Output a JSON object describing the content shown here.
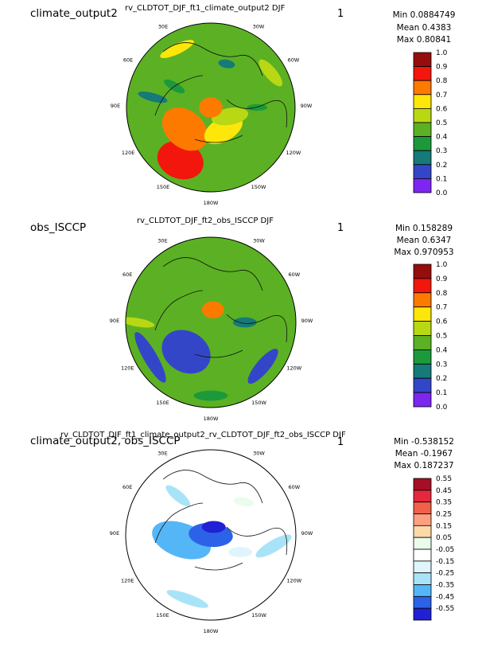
{
  "chart_data": [
    {
      "type": "heatmap",
      "title": "climate_output2",
      "subtitle": "rv_CLDTOT_DJF_ft1_climate_output2  DJF",
      "panel_number": "1",
      "stats": {
        "min": "Min 0.0884749",
        "mean": "Mean 0.4383",
        "max": "Max 0.80841"
      },
      "colorbar": {
        "labels": [
          "1.0",
          "0.9",
          "0.8",
          "0.7",
          "0.6",
          "0.5",
          "0.4",
          "0.3",
          "0.2",
          "0.1",
          "0.0"
        ],
        "colors": [
          "#960d0d",
          "#f2160c",
          "#fd7a00",
          "#fde60a",
          "#b9d814",
          "#5bb123",
          "#1c9a3b",
          "#167a78",
          "#3446c8",
          "#7d26f0"
        ]
      },
      "longitude_labels": [
        "30E",
        "30W",
        "60E",
        "60W",
        "90E",
        "90W",
        "120E",
        "120W",
        "150E",
        "150W",
        "180W"
      ],
      "blobs": [
        {
          "a": 210,
          "r": 0.72,
          "level": 1,
          "sx": 0.28,
          "sy": 0.22,
          "rot": 20
        },
        {
          "a": 230,
          "r": 0.4,
          "level": 2,
          "sx": 0.3,
          "sy": 0.22,
          "rot": 40
        },
        {
          "a": 150,
          "r": 0.3,
          "level": 3,
          "sx": 0.25,
          "sy": 0.14,
          "rot": -30
        },
        {
          "a": 115,
          "r": 0.25,
          "level": 4,
          "sx": 0.22,
          "sy": 0.1,
          "rot": -10
        },
        {
          "a": 0,
          "r": 0.0,
          "level": 2,
          "sx": 0.14,
          "sy": 0.12,
          "rot": 0
        },
        {
          "a": 20,
          "r": 0.55,
          "level": 7,
          "sx": 0.1,
          "sy": 0.05,
          "rot": 10
        },
        {
          "a": 300,
          "r": 0.5,
          "level": 6,
          "sx": 0.14,
          "sy": 0.05,
          "rot": 30
        },
        {
          "a": 90,
          "r": 0.55,
          "level": 6,
          "sx": 0.12,
          "sy": 0.04,
          "rot": 0
        },
        {
          "a": 280,
          "r": 0.7,
          "level": 7,
          "sx": 0.18,
          "sy": 0.05,
          "rot": 15
        },
        {
          "a": 330,
          "r": 0.8,
          "level": 3,
          "sx": 0.22,
          "sy": 0.06,
          "rot": -25
        },
        {
          "a": 60,
          "r": 0.82,
          "level": 4,
          "sx": 0.2,
          "sy": 0.07,
          "rot": 50
        }
      ]
    },
    {
      "type": "heatmap",
      "title": "obs_ISCCP",
      "subtitle": "rv_CLDTOT_DJF_ft2_obs_ISCCP  DJF",
      "panel_number": "1",
      "stats": {
        "min": "Min 0.158289",
        "mean": "Mean 0.6347",
        "max": "Max 0.970953"
      },
      "colorbar": {
        "labels": [
          "1.0",
          "0.9",
          "0.8",
          "0.7",
          "0.6",
          "0.5",
          "0.4",
          "0.3",
          "0.2",
          "0.1",
          "0.0"
        ],
        "colors": [
          "#960d0d",
          "#f2160c",
          "#fd7a00",
          "#fde60a",
          "#b9d814",
          "#5bb123",
          "#1c9a3b",
          "#167a78",
          "#3446c8",
          "#7d26f0"
        ]
      },
      "longitude_labels": [
        "30E",
        "30W",
        "60E",
        "60W",
        "90E",
        "90W",
        "120E",
        "120W",
        "150E",
        "150W",
        "180W"
      ],
      "blobs": [
        {
          "a": 220,
          "r": 0.45,
          "level": 8,
          "sx": 0.3,
          "sy": 0.24,
          "rot": 30
        },
        {
          "a": 240,
          "r": 0.82,
          "level": 8,
          "sx": 0.34,
          "sy": 0.08,
          "rot": 60
        },
        {
          "a": 130,
          "r": 0.8,
          "level": 8,
          "sx": 0.26,
          "sy": 0.08,
          "rot": -50
        },
        {
          "a": 10,
          "r": 0.15,
          "level": 2,
          "sx": 0.13,
          "sy": 0.1,
          "rot": 0
        },
        {
          "a": 30,
          "r": 0.62,
          "level": 5,
          "sx": 0.18,
          "sy": 0.07,
          "rot": 20
        },
        {
          "a": 300,
          "r": 0.6,
          "level": 5,
          "sx": 0.17,
          "sy": 0.06,
          "rot": -20
        },
        {
          "a": 270,
          "r": 0.86,
          "level": 4,
          "sx": 0.2,
          "sy": 0.05,
          "rot": 10
        },
        {
          "a": 90,
          "r": 0.4,
          "level": 7,
          "sx": 0.14,
          "sy": 0.06,
          "rot": 0
        },
        {
          "a": 180,
          "r": 0.86,
          "level": 6,
          "sx": 0.2,
          "sy": 0.06,
          "rot": 0
        }
      ]
    },
    {
      "type": "heatmap",
      "title": "climate_output2, obs_ISCCP",
      "subtitle": "rv_CLDTOT_DJF_ft1_climate_output2_rv_CLDTOT_DJF_ft2_obs_ISCCP  DJF",
      "panel_number": "1",
      "stats": {
        "min": "Min -0.538152",
        "mean": "Mean -0.1967",
        "max": "Max 0.187237"
      },
      "colorbar": {
        "labels": [
          "0.55",
          "0.45",
          "0.35",
          "0.25",
          "0.15",
          "0.05",
          "-0.05",
          "-0.15",
          "-0.25",
          "-0.35",
          "-0.45",
          "-0.55"
        ],
        "colors": [
          "#a50f25",
          "#e6283c",
          "#f0604a",
          "#fda080",
          "#fed9a8",
          "#eafceb",
          "#ffffff",
          "#dff5fb",
          "#a9e3f8",
          "#54b6f7",
          "#2c62e8",
          "#2020d4"
        ]
      },
      "longitude_labels": [
        "30E",
        "30W",
        "60E",
        "60W",
        "90E",
        "90W",
        "120E",
        "120W",
        "150E",
        "150W",
        "180W"
      ],
      "blobs": [
        {
          "a": 260,
          "r": 0.35,
          "level": 9,
          "sx": 0.36,
          "sy": 0.2,
          "rot": 20
        },
        {
          "a": 0,
          "r": 0.0,
          "level": 10,
          "sx": 0.26,
          "sy": 0.14,
          "rot": 5
        },
        {
          "a": 20,
          "r": 0.1,
          "level": 11,
          "sx": 0.14,
          "sy": 0.07,
          "rot": 0
        },
        {
          "a": 100,
          "r": 0.75,
          "level": 8,
          "sx": 0.24,
          "sy": 0.07,
          "rot": -30
        },
        {
          "a": 200,
          "r": 0.8,
          "level": 8,
          "sx": 0.26,
          "sy": 0.06,
          "rot": 20
        },
        {
          "a": 320,
          "r": 0.6,
          "level": 8,
          "sx": 0.18,
          "sy": 0.06,
          "rot": 40
        },
        {
          "a": 45,
          "r": 0.55,
          "level": 5,
          "sx": 0.12,
          "sy": 0.05,
          "rot": 10
        },
        {
          "a": 120,
          "r": 0.4,
          "level": 7,
          "sx": 0.14,
          "sy": 0.06,
          "rot": 0
        }
      ]
    }
  ]
}
